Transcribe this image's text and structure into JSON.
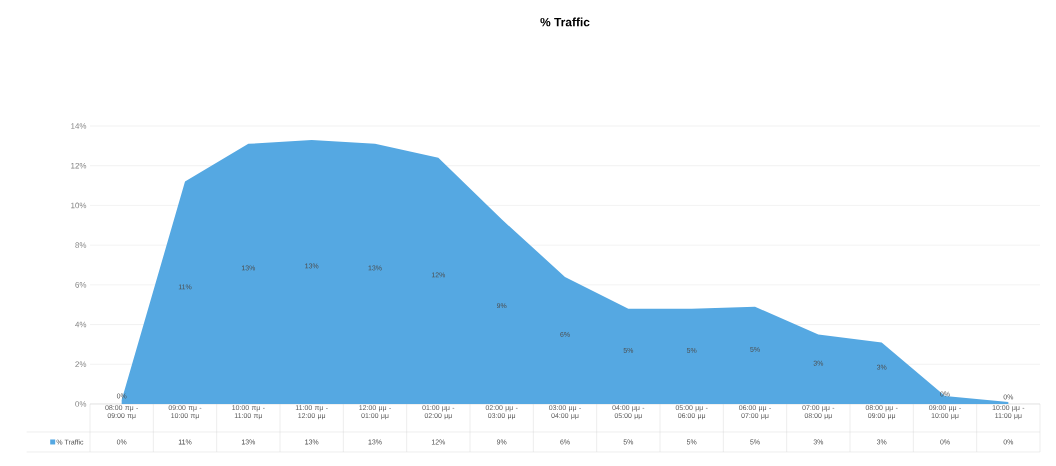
{
  "chart_data": {
    "type": "area",
    "title": "% Traffic",
    "categories": [
      "08:00 πμ - 09:00 πμ",
      "09:00 πμ - 10:00 πμ",
      "10:00 πμ - 11:00 πμ",
      "11:00 πμ - 12:00 μμ",
      "12:00 μμ - 01:00 μμ",
      "01:00 μμ - 02:00 μμ",
      "02:00 μμ - 03:00 μμ",
      "03:00 μμ - 04:00 μμ",
      "04:00 μμ - 05:00 μμ",
      "05:00 μμ - 06:00 μμ",
      "06:00 μμ - 07:00 μμ",
      "07:00 μμ - 08:00 μμ",
      "08:00 μμ - 09:00 μμ",
      "09:00 μμ - 10:00 μμ",
      "10:00 μμ - 11:00 μμ"
    ],
    "series": [
      {
        "name": "% Traffic",
        "color": "#55a8e2",
        "values": [
          0.2,
          11.2,
          13.1,
          13.3,
          13.1,
          12.4,
          9.3,
          6.4,
          4.8,
          4.8,
          4.9,
          3.5,
          3.1,
          0.4,
          0.1
        ],
        "value_labels": [
          "0%",
          "11%",
          "13%",
          "13%",
          "13%",
          "12%",
          "9%",
          "6%",
          "5%",
          "5%",
          "5%",
          "3%",
          "3%",
          "0%",
          "0%"
        ]
      }
    ],
    "ylim": [
      0,
      14
    ],
    "yticks": [
      {
        "value": 0,
        "label": "0%"
      },
      {
        "value": 2,
        "label": "2%"
      },
      {
        "value": 4,
        "label": "4%"
      },
      {
        "value": 6,
        "label": "6%"
      },
      {
        "value": 8,
        "label": "8%"
      },
      {
        "value": 10,
        "label": "10%"
      },
      {
        "value": 12,
        "label": "12%"
      },
      {
        "value": 14,
        "label": "14%"
      }
    ],
    "grid": "y"
  }
}
